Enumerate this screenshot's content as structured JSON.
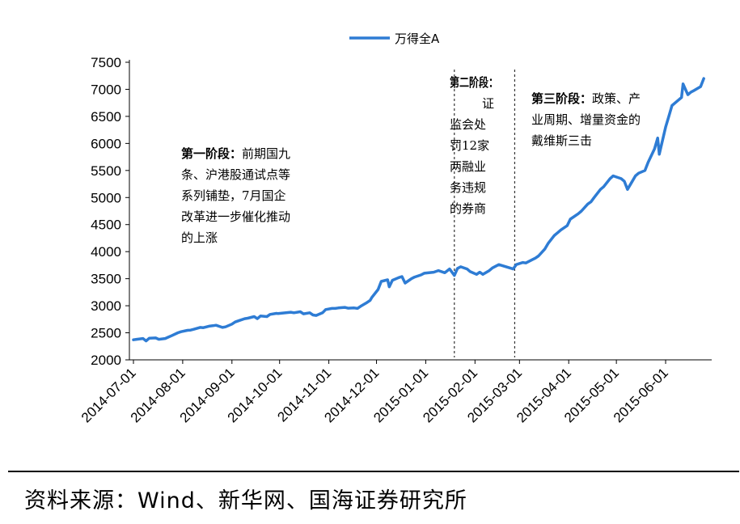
{
  "chart_data": {
    "type": "line",
    "series": [
      {
        "name": "万得全A",
        "color": "#2e7cd4",
        "points": [
          [
            "2014-07-01",
            2370
          ],
          [
            "2014-07-03",
            2380
          ],
          [
            "2014-07-07",
            2395
          ],
          [
            "2014-07-09",
            2350
          ],
          [
            "2014-07-11",
            2400
          ],
          [
            "2014-07-15",
            2405
          ],
          [
            "2014-07-17",
            2380
          ],
          [
            "2014-07-21",
            2395
          ],
          [
            "2014-07-23",
            2420
          ],
          [
            "2014-07-25",
            2445
          ],
          [
            "2014-07-29",
            2500
          ],
          [
            "2014-07-31",
            2520
          ],
          [
            "2014-08-04",
            2545
          ],
          [
            "2014-08-06",
            2550
          ],
          [
            "2014-08-08",
            2565
          ],
          [
            "2014-08-12",
            2600
          ],
          [
            "2014-08-14",
            2595
          ],
          [
            "2014-08-18",
            2625
          ],
          [
            "2014-08-20",
            2630
          ],
          [
            "2014-08-22",
            2640
          ],
          [
            "2014-08-26",
            2600
          ],
          [
            "2014-08-28",
            2610
          ],
          [
            "2014-09-01",
            2660
          ],
          [
            "2014-09-03",
            2700
          ],
          [
            "2014-09-05",
            2720
          ],
          [
            "2014-09-09",
            2760
          ],
          [
            "2014-09-11",
            2770
          ],
          [
            "2014-09-15",
            2800
          ],
          [
            "2014-09-17",
            2760
          ],
          [
            "2014-09-19",
            2810
          ],
          [
            "2014-09-23",
            2800
          ],
          [
            "2014-09-25",
            2840
          ],
          [
            "2014-09-29",
            2860
          ],
          [
            "2014-09-30",
            2855
          ],
          [
            "2014-10-08",
            2880
          ],
          [
            "2014-10-10",
            2870
          ],
          [
            "2014-10-14",
            2890
          ],
          [
            "2014-10-16",
            2850
          ],
          [
            "2014-10-20",
            2870
          ],
          [
            "2014-10-22",
            2830
          ],
          [
            "2014-10-24",
            2820
          ],
          [
            "2014-10-28",
            2870
          ],
          [
            "2014-10-30",
            2930
          ],
          [
            "2014-11-03",
            2950
          ],
          [
            "2014-11-05",
            2950
          ],
          [
            "2014-11-07",
            2960
          ],
          [
            "2014-11-11",
            2970
          ],
          [
            "2014-11-13",
            2955
          ],
          [
            "2014-11-17",
            2960
          ],
          [
            "2014-11-19",
            2950
          ],
          [
            "2014-11-21",
            2990
          ],
          [
            "2014-11-25",
            3060
          ],
          [
            "2014-11-27",
            3100
          ],
          [
            "2014-11-28",
            3150
          ],
          [
            "2014-12-02",
            3300
          ],
          [
            "2014-12-04",
            3450
          ],
          [
            "2014-12-08",
            3480
          ],
          [
            "2014-12-09",
            3350
          ],
          [
            "2014-12-11",
            3470
          ],
          [
            "2014-12-15",
            3520
          ],
          [
            "2014-12-17",
            3540
          ],
          [
            "2014-12-19",
            3420
          ],
          [
            "2014-12-23",
            3500
          ],
          [
            "2014-12-25",
            3530
          ],
          [
            "2014-12-29",
            3570
          ],
          [
            "2014-12-31",
            3600
          ],
          [
            "2015-01-06",
            3620
          ],
          [
            "2015-01-09",
            3650
          ],
          [
            "2015-01-13",
            3610
          ],
          [
            "2015-01-16",
            3680
          ],
          [
            "2015-01-19",
            3560
          ],
          [
            "2015-01-21",
            3690
          ],
          [
            "2015-01-23",
            3720
          ],
          [
            "2015-01-27",
            3680
          ],
          [
            "2015-01-29",
            3630
          ],
          [
            "2015-02-02",
            3580
          ],
          [
            "2015-02-04",
            3620
          ],
          [
            "2015-02-06",
            3580
          ],
          [
            "2015-02-10",
            3650
          ],
          [
            "2015-02-12",
            3700
          ],
          [
            "2015-02-16",
            3760
          ],
          [
            "2015-02-25",
            3680
          ],
          [
            "2015-02-27",
            3760
          ],
          [
            "2015-03-03",
            3800
          ],
          [
            "2015-03-05",
            3790
          ],
          [
            "2015-03-09",
            3850
          ],
          [
            "2015-03-11",
            3880
          ],
          [
            "2015-03-13",
            3920
          ],
          [
            "2015-03-17",
            4050
          ],
          [
            "2015-03-19",
            4150
          ],
          [
            "2015-03-23",
            4300
          ],
          [
            "2015-03-25",
            4350
          ],
          [
            "2015-03-27",
            4400
          ],
          [
            "2015-03-31",
            4480
          ],
          [
            "2015-04-02",
            4600
          ],
          [
            "2015-04-07",
            4700
          ],
          [
            "2015-04-09",
            4750
          ],
          [
            "2015-04-13",
            4880
          ],
          [
            "2015-04-15",
            4920
          ],
          [
            "2015-04-17",
            5000
          ],
          [
            "2015-04-21",
            5150
          ],
          [
            "2015-04-23",
            5200
          ],
          [
            "2015-04-27",
            5350
          ],
          [
            "2015-04-29",
            5400
          ],
          [
            "2015-05-04",
            5350
          ],
          [
            "2015-05-06",
            5300
          ],
          [
            "2015-05-08",
            5150
          ],
          [
            "2015-05-11",
            5300
          ],
          [
            "2015-05-13",
            5400
          ],
          [
            "2015-05-15",
            5450
          ],
          [
            "2015-05-19",
            5500
          ],
          [
            "2015-05-21",
            5650
          ],
          [
            "2015-05-25",
            5900
          ],
          [
            "2015-05-27",
            6100
          ],
          [
            "2015-05-28",
            5800
          ],
          [
            "2015-06-01",
            6300
          ],
          [
            "2015-06-03",
            6500
          ],
          [
            "2015-06-05",
            6700
          ],
          [
            "2015-06-09",
            6800
          ],
          [
            "2015-06-11",
            6850
          ],
          [
            "2015-06-12",
            7100
          ],
          [
            "2015-06-15",
            6900
          ],
          [
            "2015-06-17",
            6950
          ],
          [
            "2015-06-19",
            6980
          ],
          [
            "2015-06-23",
            7050
          ],
          [
            "2015-06-25",
            7200
          ]
        ]
      }
    ],
    "x_ticks": [
      "2014-07-01",
      "2014-08-01",
      "2014-09-01",
      "2014-10-01",
      "2014-11-01",
      "2014-12-01",
      "2015-01-01",
      "2015-02-01",
      "2015-03-01",
      "2015-04-01",
      "2015-05-01",
      "2015-06-01"
    ],
    "xlim": [
      "2014-07-01",
      "2015-06-30"
    ],
    "y_ticks": [
      2000,
      2500,
      3000,
      3500,
      4000,
      4500,
      5000,
      5500,
      6000,
      6500,
      7000,
      7500
    ],
    "ylim": [
      2000,
      7500
    ],
    "grid": false,
    "legend_position": "top-center",
    "vertical_markers": [
      {
        "x": "2015-01-19",
        "style": "dashed"
      },
      {
        "x": "2015-02-26",
        "style": "dashed"
      }
    ],
    "annotations": [
      {
        "bold": "第一阶段：",
        "lines": [
          "前期国九",
          "条、沪港股通试点等",
          "系列铺垫，7月国企",
          "改革进一步催化推动",
          "的上涨"
        ]
      },
      {
        "bold": "第二阶段：",
        "lines": [
          "证",
          "监会处",
          "罚12家",
          "两融业",
          "务违规",
          "的券商"
        ]
      },
      {
        "bold": "第三阶段：",
        "lines": [
          "政策、产",
          "业周期、增量资金的",
          "戴维斯三击"
        ]
      }
    ]
  },
  "source": "资料来源：Wind、新华网、国海证券研究所"
}
